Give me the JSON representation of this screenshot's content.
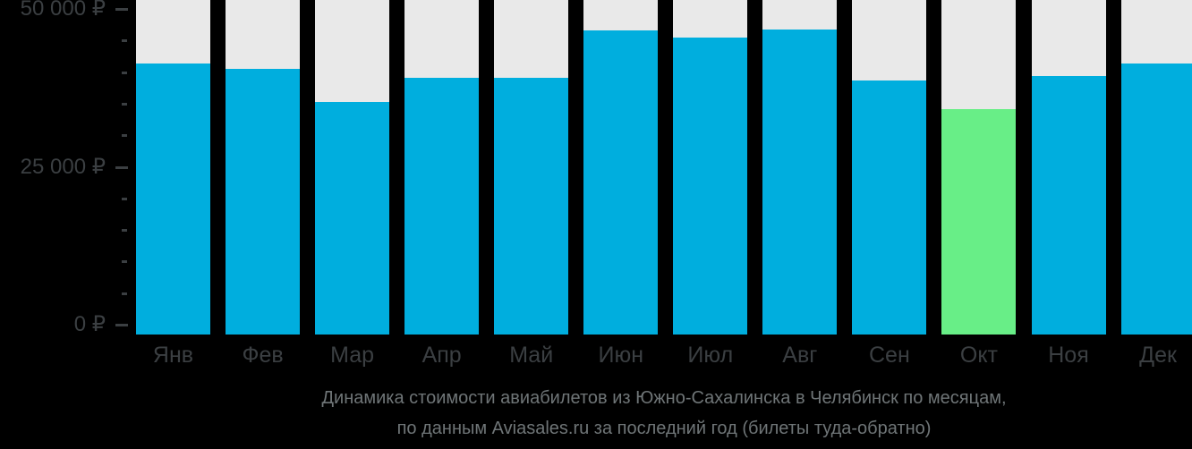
{
  "chart_data": {
    "type": "bar",
    "title_lines": [
      "Динамика стоимости авиабилетов из Южно-Сахалинска в Челябинск по месяцам,",
      "по данным Aviasales.ru за последний год (билеты туда-обратно)"
    ],
    "categories": [
      "Янв",
      "Фев",
      "Мар",
      "Апр",
      "Май",
      "Июн",
      "Июл",
      "Авг",
      "Сен",
      "Окт",
      "Ноя",
      "Дек"
    ],
    "values": [
      41400,
      40500,
      35300,
      39100,
      39100,
      46600,
      45500,
      46800,
      38700,
      34100,
      39400,
      41400
    ],
    "highlight_index": 9,
    "highlight_category": "Окт",
    "ylabel": "",
    "xlabel": "",
    "ylim": [
      0,
      50000
    ],
    "y_axis": {
      "minor_step": 5000,
      "major_ticks": [
        {
          "value": 0,
          "label": "0 ₽"
        },
        {
          "value": 25000,
          "label": "25 000 ₽"
        },
        {
          "value": 50000,
          "label": "50 000 ₽"
        }
      ]
    },
    "legend": "none",
    "grid": "off"
  },
  "colors": {
    "background": "#000000",
    "bar": "#00AEDE",
    "bar_highlight": "#68EE87",
    "bar_track": "#E9E9E9",
    "axis_text": "#3B3F42",
    "caption_text": "#6F7577"
  }
}
